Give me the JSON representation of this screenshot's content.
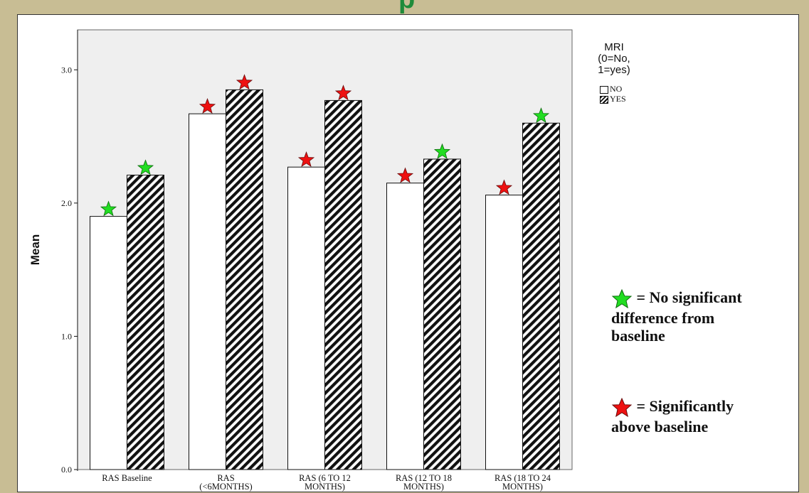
{
  "page": {
    "header_fragment": "p",
    "background_color": "#c8bd94",
    "header_color": "#1f8b3a"
  },
  "chart_data": {
    "type": "bar",
    "categories": [
      [
        "RAS Baseline"
      ],
      [
        "RAS",
        "(<6MONTHS)"
      ],
      [
        "RAS (6 TO 12",
        "MONTHS)"
      ],
      [
        "RAS (12 TO 18",
        "MONTHS)"
      ],
      [
        "RAS (18 TO 24",
        "MONTHS)"
      ]
    ],
    "series": [
      {
        "name": "NO",
        "values": [
          1.9,
          2.67,
          2.27,
          2.15,
          2.06
        ],
        "pattern": "none"
      },
      {
        "name": "YES",
        "values": [
          2.21,
          2.85,
          2.77,
          2.33,
          2.6
        ],
        "pattern": "hatch"
      }
    ],
    "markers": [
      [
        "green",
        "green"
      ],
      [
        "red",
        "red"
      ],
      [
        "red",
        "red"
      ],
      [
        "red",
        "green"
      ],
      [
        "red",
        "green"
      ]
    ],
    "ylabel": "Mean",
    "ylim": [
      0,
      3.3
    ],
    "yticks": [
      "0.0",
      "1.0",
      "2.0",
      "3.0"
    ],
    "yticks_values": [
      0,
      1,
      2,
      3
    ],
    "legend": {
      "title_lines": [
        "MRI",
        "(0=No,",
        "1=yes)"
      ],
      "items": [
        "NO",
        "YES"
      ],
      "placement": "top-right"
    },
    "plot_background": "#efefef"
  },
  "annotations": {
    "green_note_lines": [
      "= No significant",
      "difference from",
      "baseline"
    ],
    "red_note_lines": [
      "= Significantly",
      "above baseline"
    ],
    "green_color": "#22dd22",
    "red_color": "#ee1111"
  }
}
